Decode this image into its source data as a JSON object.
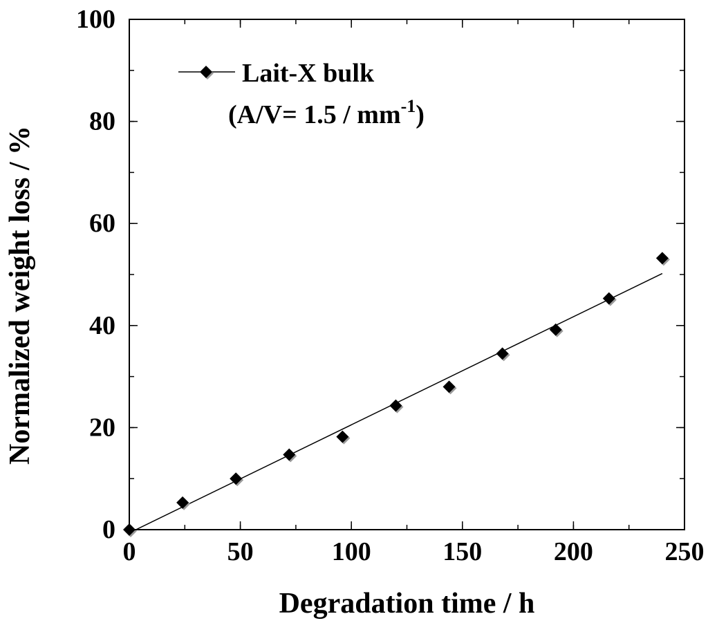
{
  "chart_data": {
    "type": "scatter",
    "xlabel": "Degradation time / h",
    "ylabel": "Normalized weight loss / %",
    "xlim": [
      0,
      250
    ],
    "ylim": [
      0,
      100
    ],
    "x_ticks": [
      0,
      50,
      100,
      150,
      200,
      250
    ],
    "y_ticks": [
      0,
      20,
      40,
      60,
      80,
      100
    ],
    "x_tick_labels": [
      "0",
      "50",
      "100",
      "150",
      "200",
      "250"
    ],
    "y_tick_labels": [
      "0",
      "20",
      "40",
      "60",
      "80",
      "100"
    ],
    "x_minor_step": 25,
    "y_minor_step": 10,
    "grid": false,
    "legend": {
      "position": "top-left",
      "label": "Lait-X bulk",
      "sublabel_prefix": "(A/V= 1.5 / mm",
      "sublabel_sup": "-1",
      "sublabel_suffix": ")"
    },
    "series": [
      {
        "name": "Lait-X bulk",
        "marker": "diamond",
        "x": [
          0,
          24,
          48,
          72,
          96,
          120,
          144,
          168,
          192,
          216,
          240
        ],
        "y": [
          0,
          5.3,
          10.0,
          14.7,
          18.2,
          24.3,
          28.0,
          34.5,
          39.2,
          45.3,
          53.2
        ]
      }
    ],
    "fit_line": {
      "name": "linear fit",
      "x": [
        3,
        240
      ],
      "y": [
        0,
        50.2
      ]
    },
    "colors": {
      "marker": "#000000",
      "marker_shadow": "#9a9a9a",
      "line": "#000000"
    }
  }
}
